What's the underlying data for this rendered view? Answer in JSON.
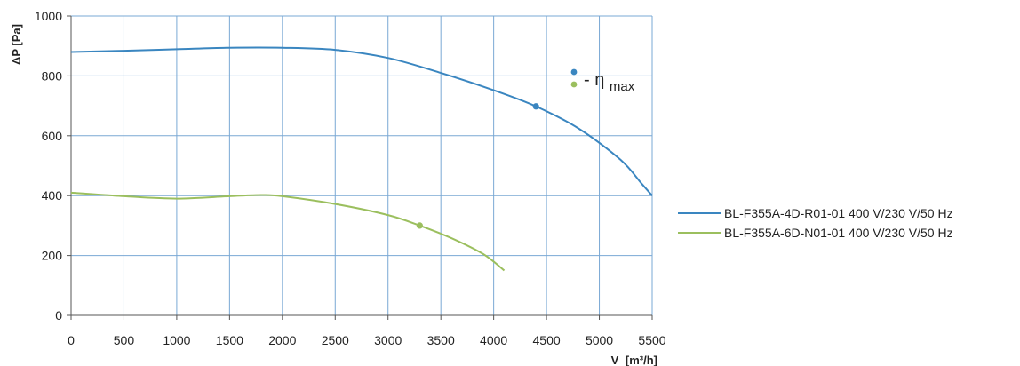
{
  "chart_data": {
    "type": "line",
    "xlabel_main": "V",
    "xlabel_unit": "[m³/h]",
    "ylabel": "ΔP [Pa]",
    "xlim": [
      0,
      5500
    ],
    "ylim": [
      0,
      1000
    ],
    "x_ticks": [
      "0",
      "500",
      "1000",
      "1500",
      "2000",
      "2500",
      "3000",
      "3500",
      "4000",
      "4500",
      "5000",
      "5500"
    ],
    "y_ticks": [
      "0",
      "200",
      "400",
      "600",
      "800",
      "1000"
    ],
    "grid": true,
    "legend_position": "right",
    "annotation": {
      "prefix": "- η",
      "subscript": "max"
    },
    "series": [
      {
        "name": "BL-F355A-4D-R01-01 400 V/230 V/50 Hz",
        "color": "#3a86c0",
        "x": [
          0,
          500,
          1000,
          1500,
          2000,
          2500,
          3000,
          3500,
          4000,
          4400,
          4800,
          5200,
          5400,
          5500
        ],
        "y": [
          880,
          884,
          889,
          894,
          894,
          887,
          860,
          810,
          752,
          698,
          625,
          520,
          440,
          400
        ],
        "max_efficiency_point": [
          4400,
          698
        ]
      },
      {
        "name": "BL-F355A-6D-N01-01 400 V/230 V/50 Hz",
        "color": "#9bbf5e",
        "x": [
          0,
          500,
          1000,
          1500,
          1800,
          2000,
          2500,
          3000,
          3300,
          3600,
          3900,
          4100
        ],
        "y": [
          410,
          398,
          390,
          398,
          402,
          398,
          372,
          335,
          300,
          258,
          205,
          150
        ],
        "max_efficiency_point": [
          3300,
          300
        ]
      }
    ]
  }
}
